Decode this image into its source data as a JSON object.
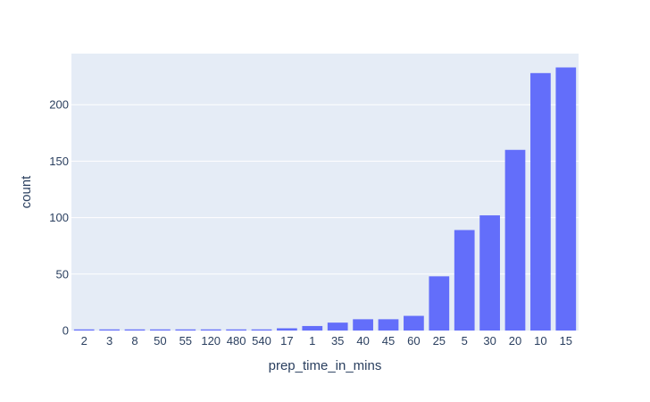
{
  "chart_data": {
    "type": "bar",
    "xlabel": "prep_time_in_mins",
    "ylabel": "count",
    "categories": [
      "2",
      "3",
      "8",
      "50",
      "55",
      "120",
      "480",
      "540",
      "17",
      "1",
      "35",
      "40",
      "45",
      "60",
      "25",
      "5",
      "30",
      "20",
      "10",
      "15"
    ],
    "values": [
      1,
      1,
      1,
      1,
      1,
      1,
      1,
      1,
      2,
      4,
      7,
      10,
      10,
      13,
      48,
      89,
      102,
      160,
      228,
      233
    ],
    "ylim": [
      0,
      245.26
    ],
    "yticks": [
      0,
      50,
      100,
      150,
      200
    ],
    "grid": true,
    "colors": {
      "bar": "#636efa",
      "plot_bg": "#e5ecf6",
      "grid": "#ffffff",
      "text": "#2a3f5f"
    }
  }
}
